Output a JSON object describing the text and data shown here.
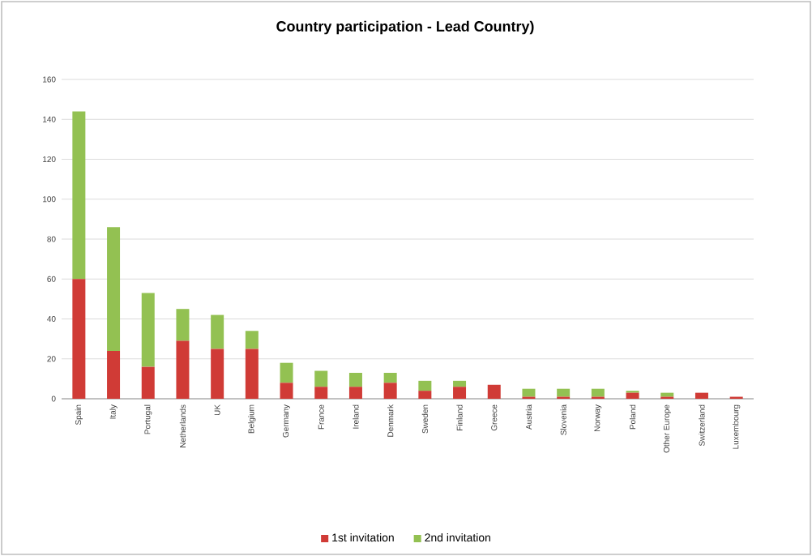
{
  "chart_data": {
    "type": "bar",
    "title": "Country participation - Lead Country)",
    "stacked": true,
    "grid": "y",
    "legend": "bottom",
    "categories": [
      "Spain",
      "Italy",
      "Portugal",
      "Netherlands",
      "UK",
      "Belgium",
      "Germany",
      "France",
      "Ireland",
      "Denmark",
      "Sweden",
      "Finland",
      "Greece",
      "Austria",
      "Slovenia",
      "Norway",
      "Poland",
      "Other Europe",
      "Switzerland",
      "Luxembourg"
    ],
    "series": [
      {
        "name": "1st invitation",
        "color": "#d03b36",
        "values": [
          60,
          24,
          16,
          29,
          25,
          25,
          8,
          6,
          6,
          8,
          4,
          6,
          7,
          1,
          1,
          1,
          3,
          1,
          3,
          1
        ]
      },
      {
        "name": "2nd invitation",
        "color": "#93c152",
        "values": [
          84,
          62,
          37,
          16,
          17,
          9,
          10,
          8,
          7,
          5,
          5,
          3,
          0,
          4,
          4,
          4,
          1,
          2,
          0,
          0
        ]
      }
    ],
    "ylim": [
      0,
      160
    ],
    "yticks": [
      0,
      20,
      40,
      60,
      80,
      100,
      120,
      140,
      160
    ]
  }
}
